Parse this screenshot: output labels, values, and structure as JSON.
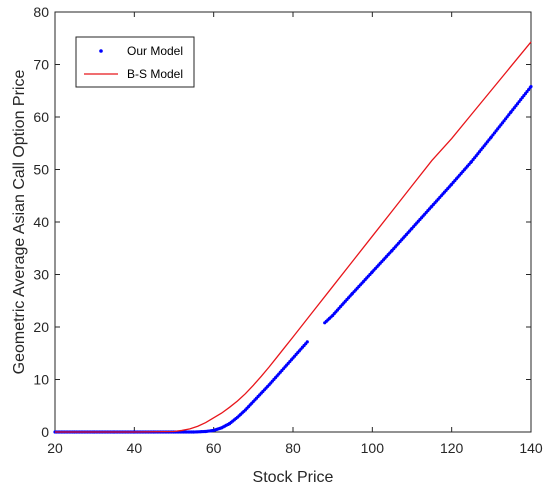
{
  "chart_data": {
    "type": "line",
    "xlabel": "Stock Price",
    "ylabel": "Geometric Average Asian Call Option Price",
    "xlim": [
      20,
      140
    ],
    "ylim": [
      0,
      80
    ],
    "xticks": [
      20,
      40,
      60,
      80,
      100,
      120,
      140
    ],
    "yticks": [
      0,
      10,
      20,
      30,
      40,
      50,
      60,
      70,
      80
    ],
    "grid": false,
    "legend_position": "top-left",
    "series": [
      {
        "name": "Our Model",
        "style": "dots",
        "color": "#0000ff",
        "x": [
          20,
          25,
          30,
          35,
          40,
          45,
          50,
          55,
          58,
          60,
          62,
          64,
          66,
          68,
          70,
          72,
          74,
          76,
          78,
          80,
          82,
          84,
          88,
          90,
          92,
          95,
          100,
          105,
          110,
          115,
          120,
          125,
          130,
          135,
          140
        ],
        "y": [
          0,
          0,
          0,
          0,
          0,
          0,
          0,
          0,
          0.1,
          0.3,
          0.8,
          1.6,
          2.8,
          4.2,
          5.8,
          7.4,
          9.0,
          10.7,
          12.4,
          14.1,
          15.8,
          17.5,
          20.8,
          22.2,
          23.9,
          26.4,
          30.5,
          34.6,
          38.8,
          43.0,
          47.2,
          51.5,
          56.2,
          61.0,
          65.8
        ]
      },
      {
        "name": "B-S Model",
        "style": "line",
        "color": "#e8161b",
        "x": [
          20,
          30,
          40,
          50,
          52,
          54,
          56,
          58,
          60,
          62,
          64,
          66,
          68,
          70,
          72,
          74,
          76,
          78,
          80,
          85,
          90,
          95,
          100,
          105,
          110,
          115,
          120,
          125,
          130,
          135,
          140
        ],
        "y": [
          0,
          0,
          0,
          0.1,
          0.3,
          0.6,
          1.1,
          1.8,
          2.7,
          3.6,
          4.7,
          5.9,
          7.3,
          8.9,
          10.6,
          12.4,
          14.3,
          16.2,
          18.1,
          22.9,
          27.7,
          32.5,
          37.3,
          42.1,
          46.9,
          51.7,
          55.9,
          60.5,
          65.1,
          69.7,
          74.3
        ]
      }
    ]
  }
}
